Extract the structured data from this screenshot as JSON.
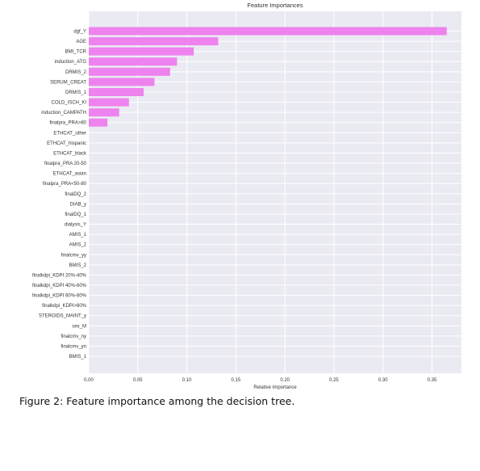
{
  "chart_data": {
    "type": "bar",
    "orientation": "horizontal",
    "title": "Feature Importances",
    "xlabel": "Relative Importance",
    "ylabel": "",
    "xlim": [
      0,
      0.38
    ],
    "xticks": [
      "0.00",
      "0.05",
      "0.10",
      "0.15",
      "0.20",
      "0.25",
      "0.30",
      "0.35"
    ],
    "grid": true,
    "categories": [
      "dgf_Y",
      "AGE",
      "BMI_TCR",
      "induction_ATG",
      "DRMIS_2",
      "SERUM_CREAT",
      "DRMIS_1",
      "COLD_ISCH_KI",
      "induction_CAMPATH",
      "finalpra_PRA>80",
      "ETHCAT_other",
      "ETHCAT_hispanic",
      "ETHCAT_black",
      "finalpra_PRA 20-50",
      "ETHCAT_asian",
      "finalpra_PRA<50-80",
      "finalDQ_2",
      "DIAB_y",
      "finalDQ_1",
      "dialysis_Y",
      "AMIS_1",
      "AMIS_2",
      "finalcmv_yy",
      "BMIS_2",
      "finalkdpi_KDPI 20%-40%",
      "finalkdpi_KDPI 40%-60%",
      "finalkdpi_KDPI 60%-80%",
      "finalkdpi_KDPI>80%",
      "STEROIDS_MAINT_y",
      "sex_M",
      "finalcmv_ny",
      "finalcmv_yn",
      "BMIS_1"
    ],
    "values": [
      0.365,
      0.132,
      0.107,
      0.09,
      0.083,
      0.067,
      0.056,
      0.041,
      0.031,
      0.019,
      0,
      0,
      0,
      0,
      0,
      0,
      0,
      0,
      0,
      0,
      0,
      0,
      0,
      0,
      0,
      0,
      0,
      0,
      0,
      0,
      0,
      0,
      0
    ],
    "colors": {
      "bar": "#ee82ee",
      "background": "#eaeaf2",
      "grid": "#ffffff",
      "text": "#333333"
    }
  },
  "caption": "Figure 2: Feature importance among the decision tree."
}
